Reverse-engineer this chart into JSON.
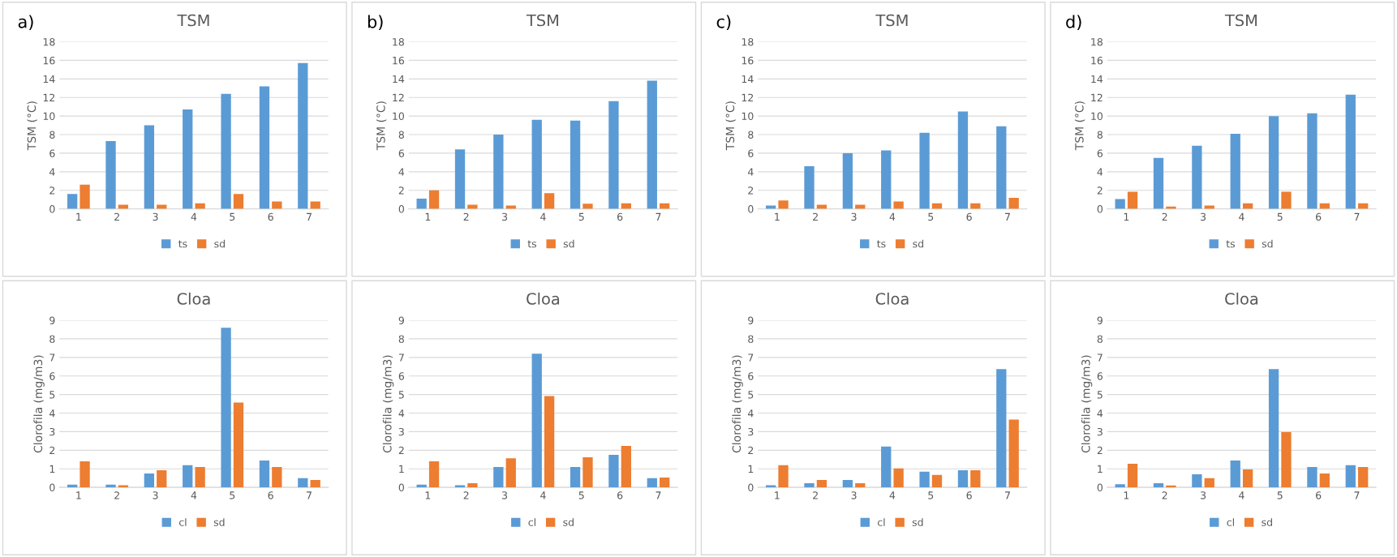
{
  "chart_data": [
    {
      "type": "bar",
      "title": "TSM",
      "annotations": [
        "a)"
      ],
      "ylabel": "TSM (°C)",
      "categories": [
        "1",
        "2",
        "3",
        "4",
        "5",
        "6",
        "7"
      ],
      "ylim": [
        0,
        18
      ],
      "yticks": [
        0,
        2,
        4,
        6,
        8,
        10,
        12,
        14,
        16,
        18
      ],
      "grid": "y",
      "legend": "bottom",
      "series": [
        {
          "name": "ts",
          "color": "#5b9bd5",
          "values": [
            1.6,
            7.3,
            9.0,
            10.7,
            12.4,
            13.2,
            15.7
          ]
        },
        {
          "name": "sd",
          "color": "#ed7d31",
          "values": [
            2.6,
            0.45,
            0.45,
            0.6,
            1.6,
            0.8,
            0.8
          ]
        }
      ]
    },
    {
      "type": "bar",
      "title": "TSM",
      "annotations": [
        "b)"
      ],
      "ylabel": "TSM (°C)",
      "categories": [
        "1",
        "2",
        "3",
        "4",
        "5",
        "6",
        "7"
      ],
      "ylim": [
        0,
        18
      ],
      "yticks": [
        0,
        2,
        4,
        6,
        8,
        10,
        12,
        14,
        16,
        18
      ],
      "grid": "y",
      "legend": "bottom",
      "series": [
        {
          "name": "ts",
          "color": "#5b9bd5",
          "values": [
            1.1,
            6.4,
            8.0,
            9.6,
            9.5,
            11.6,
            13.8
          ]
        },
        {
          "name": "sd",
          "color": "#ed7d31",
          "values": [
            2.0,
            0.45,
            0.35,
            1.7,
            0.55,
            0.6,
            0.6
          ]
        }
      ]
    },
    {
      "type": "bar",
      "title": "TSM",
      "annotations": [
        "c)"
      ],
      "ylabel": "TSM (°C)",
      "categories": [
        "1",
        "2",
        "3",
        "4",
        "5",
        "6",
        "7"
      ],
      "ylim": [
        0,
        18
      ],
      "yticks": [
        0,
        2,
        4,
        6,
        8,
        10,
        12,
        14,
        16,
        18
      ],
      "grid": "y",
      "legend": "bottom",
      "series": [
        {
          "name": "ts",
          "color": "#5b9bd5",
          "values": [
            0.35,
            4.6,
            6.0,
            6.3,
            8.2,
            10.5,
            8.9
          ]
        },
        {
          "name": "sd",
          "color": "#ed7d31",
          "values": [
            0.9,
            0.45,
            0.45,
            0.8,
            0.6,
            0.6,
            1.2
          ]
        }
      ]
    },
    {
      "type": "bar",
      "title": "TSM",
      "annotations": [
        "d)"
      ],
      "ylabel": "TSM (°C)",
      "categories": [
        "1",
        "2",
        "3",
        "4",
        "5",
        "6",
        "7"
      ],
      "ylim": [
        0,
        18
      ],
      "yticks": [
        0,
        2,
        4,
        6,
        8,
        10,
        12,
        14,
        16,
        18
      ],
      "grid": "y",
      "legend": "bottom",
      "series": [
        {
          "name": "ts",
          "color": "#5b9bd5",
          "values": [
            1.05,
            5.5,
            6.8,
            8.1,
            10.0,
            10.3,
            12.3
          ]
        },
        {
          "name": "sd",
          "color": "#ed7d31",
          "values": [
            1.85,
            0.25,
            0.35,
            0.6,
            1.85,
            0.6,
            0.6
          ]
        }
      ]
    },
    {
      "type": "bar",
      "title": "Cloa",
      "ylabel": "Clorofila (mg/m3)",
      "categories": [
        "1",
        "2",
        "3",
        "4",
        "5",
        "6",
        "7"
      ],
      "ylim": [
        0,
        9
      ],
      "yticks": [
        0,
        1,
        2,
        3,
        4,
        5,
        6,
        7,
        8,
        9
      ],
      "grid": "y",
      "legend": "bottom",
      "series": [
        {
          "name": "cl",
          "color": "#5b9bd5",
          "values": [
            0.15,
            0.15,
            0.75,
            1.2,
            8.6,
            1.45,
            0.5
          ]
        },
        {
          "name": "sd",
          "color": "#ed7d31",
          "values": [
            1.4,
            0.12,
            0.92,
            1.1,
            4.57,
            1.1,
            0.4
          ]
        }
      ]
    },
    {
      "type": "bar",
      "title": "Cloa",
      "ylabel": "Clorofila (mg/m3)",
      "categories": [
        "1",
        "2",
        "3",
        "4",
        "5",
        "6",
        "7"
      ],
      "ylim": [
        0,
        9
      ],
      "yticks": [
        0,
        1,
        2,
        3,
        4,
        5,
        6,
        7,
        8,
        9
      ],
      "grid": "y",
      "legend": "bottom",
      "series": [
        {
          "name": "cl",
          "color": "#5b9bd5",
          "values": [
            0.15,
            0.12,
            1.1,
            7.2,
            1.1,
            1.75,
            0.5
          ]
        },
        {
          "name": "sd",
          "color": "#ed7d31",
          "values": [
            1.4,
            0.22,
            1.57,
            4.92,
            1.62,
            2.23,
            0.53
          ]
        }
      ]
    },
    {
      "type": "bar",
      "title": "Cloa",
      "ylabel": "Clorofila (mg/m3)",
      "categories": [
        "1",
        "2",
        "3",
        "4",
        "5",
        "6",
        "7"
      ],
      "ylim": [
        0,
        9
      ],
      "yticks": [
        0,
        1,
        2,
        3,
        4,
        5,
        6,
        7,
        8,
        9
      ],
      "grid": "y",
      "legend": "bottom",
      "series": [
        {
          "name": "cl",
          "color": "#5b9bd5",
          "values": [
            0.12,
            0.22,
            0.4,
            2.2,
            0.85,
            0.92,
            6.37
          ]
        },
        {
          "name": "sd",
          "color": "#ed7d31",
          "values": [
            1.2,
            0.4,
            0.22,
            1.02,
            0.67,
            0.92,
            3.65
          ]
        }
      ]
    },
    {
      "type": "bar",
      "title": "Cloa",
      "ylabel": "Clorofila (mg/m3)",
      "categories": [
        "1",
        "2",
        "3",
        "4",
        "5",
        "6",
        "7"
      ],
      "ylim": [
        0,
        9
      ],
      "yticks": [
        0,
        1,
        2,
        3,
        4,
        5,
        6,
        7,
        8,
        9
      ],
      "grid": "y",
      "legend": "bottom",
      "series": [
        {
          "name": "cl",
          "color": "#5b9bd5",
          "values": [
            0.17,
            0.22,
            0.7,
            1.45,
            6.37,
            1.1,
            1.2
          ]
        },
        {
          "name": "sd",
          "color": "#ed7d31",
          "values": [
            1.27,
            0.1,
            0.5,
            0.97,
            2.98,
            0.75,
            1.1
          ]
        }
      ]
    }
  ]
}
